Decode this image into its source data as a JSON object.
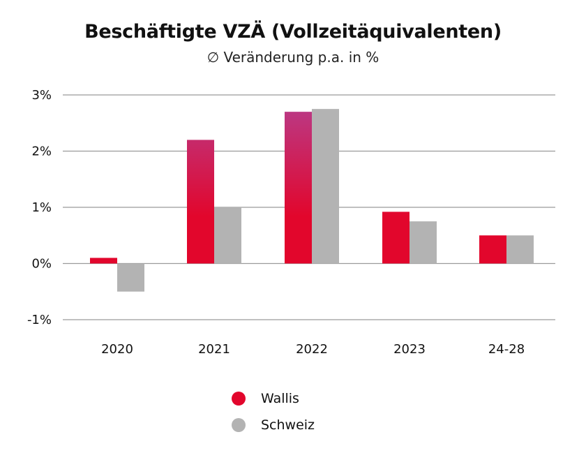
{
  "chart_data": {
    "type": "bar",
    "title": "Beschäftigte VZÄ (Vollzeitäquivalenten)",
    "subtitle": "∅ Veränderung p.a. in %",
    "categories": [
      "2020",
      "2021",
      "2022",
      "2023",
      "24-28"
    ],
    "series": [
      {
        "name": "Wallis",
        "values": [
          0.1,
          2.2,
          2.7,
          0.92,
          0.5
        ]
      },
      {
        "name": "Schweiz",
        "values": [
          -0.5,
          1.0,
          2.75,
          0.75,
          0.5
        ]
      }
    ],
    "ylim": [
      -1,
      3
    ],
    "yticks": [
      3,
      2,
      1,
      0,
      -1
    ],
    "ytick_labels": [
      "3%",
      "2%",
      "1%",
      "0%",
      "-1%"
    ],
    "grid": true,
    "legend_position": "bottom"
  },
  "colors": {
    "wallis_top": "#b63f8f",
    "wallis_bottom": "#e2062c",
    "schweiz": "#b3b3b3",
    "grid": "#9a9a9a"
  }
}
